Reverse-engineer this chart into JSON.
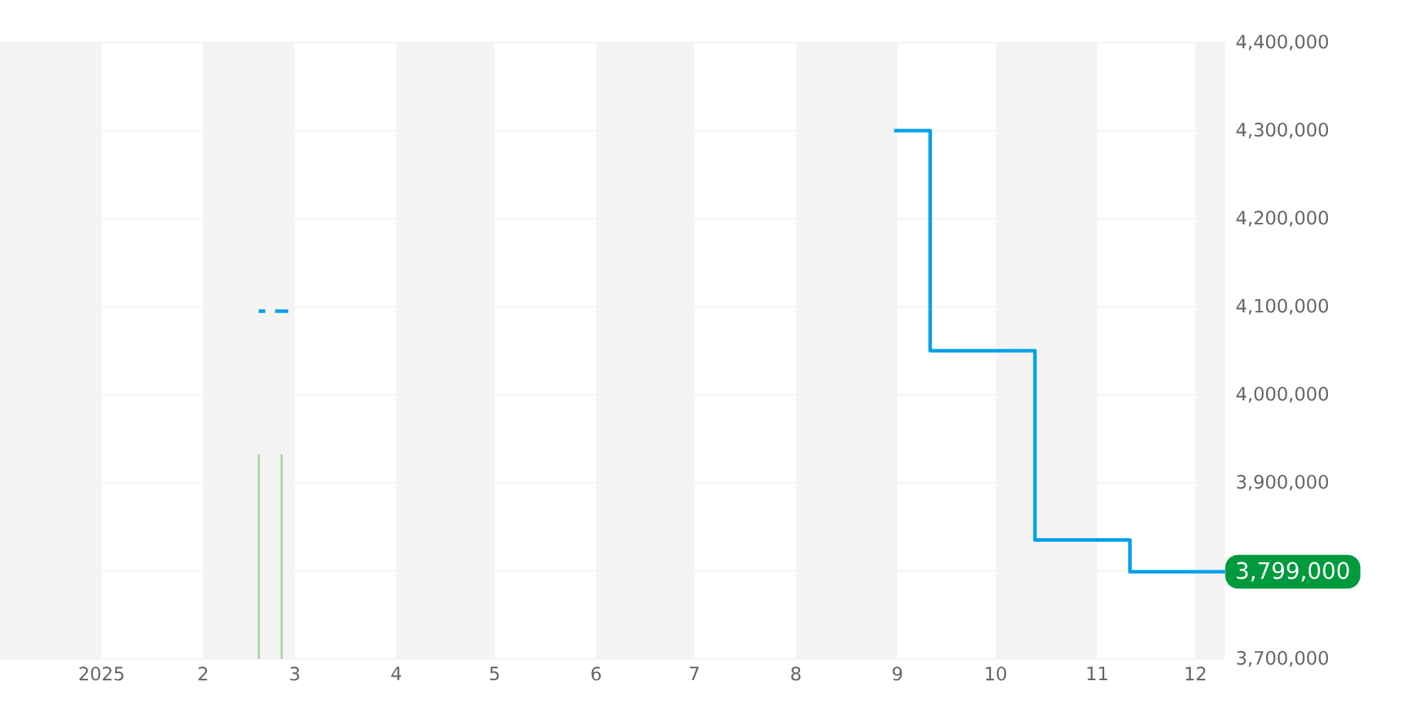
{
  "chart_data": {
    "type": "step",
    "x": [
      "2025-02-18",
      "2025-02-20",
      "2025-02-21",
      "2025-02-23",
      "2025-02-27",
      "2025-03-01",
      "2025-08-31",
      "2025-09-11",
      "2025-10-13",
      "2025-11-11",
      "2025-12-10"
    ],
    "series": [
      {
        "color": "#00a0e9",
        "values": [
          4095000,
          4095000,
          null,
          4095000,
          4095000,
          null,
          4300000,
          4050000,
          3835000,
          3799000,
          3799000
        ]
      },
      {
        "type": "bar",
        "color": "#a5d6a7",
        "x": [
          "2025-02-18",
          "2025-02-25"
        ],
        "values": [
          3932000,
          3932000
        ]
      }
    ],
    "xlim": [
      "2024-12-01",
      "2025-12-10"
    ],
    "xticks": [
      {
        "value": "2025-01-01",
        "label": "2025"
      },
      {
        "value": "2025-02-01",
        "label": "2"
      },
      {
        "value": "2025-03-01",
        "label": "3"
      },
      {
        "value": "2025-04-01",
        "label": "4"
      },
      {
        "value": "2025-05-01",
        "label": "5"
      },
      {
        "value": "2025-06-01",
        "label": "6"
      },
      {
        "value": "2025-07-01",
        "label": "7"
      },
      {
        "value": "2025-08-01",
        "label": "8"
      },
      {
        "value": "2025-09-01",
        "label": "9"
      },
      {
        "value": "2025-10-01",
        "label": "10"
      },
      {
        "value": "2025-11-01",
        "label": "11"
      },
      {
        "value": "2025-12-01",
        "label": "12"
      }
    ],
    "ylim": [
      3700000,
      4400000
    ],
    "yticks": [
      {
        "value": 3700000,
        "label": "3,700,000"
      },
      {
        "value": 3800000,
        "label": null
      },
      {
        "value": 3900000,
        "label": "3,900,000"
      },
      {
        "value": 4000000,
        "label": "4,000,000"
      },
      {
        "value": 4100000,
        "label": "4,100,000"
      },
      {
        "value": 4200000,
        "label": "4,200,000"
      },
      {
        "value": 4300000,
        "label": "4,300,000"
      },
      {
        "value": 4400000,
        "label": "4,400,000"
      }
    ],
    "grid": "y",
    "bands": [
      {
        "axis": "x",
        "from": "2024-12-01",
        "to": "2025-01-01",
        "color": "#f4f4f4"
      },
      {
        "axis": "x",
        "from": "2025-02-01",
        "to": "2025-03-01",
        "color": "#f4f4f4"
      },
      {
        "axis": "x",
        "from": "2025-04-01",
        "to": "2025-05-01",
        "color": "#f4f4f4"
      },
      {
        "axis": "x",
        "from": "2025-06-01",
        "to": "2025-07-01",
        "color": "#f4f4f4"
      },
      {
        "axis": "x",
        "from": "2025-08-01",
        "to": "2025-09-01",
        "color": "#f4f4f4"
      },
      {
        "axis": "x",
        "from": "2025-10-01",
        "to": "2025-11-01",
        "color": "#f4f4f4"
      },
      {
        "axis": "x",
        "from": "2025-12-01",
        "to": "2025-12-10",
        "color": "#f4f4f4"
      }
    ],
    "annotations": [
      {
        "text": "3,799,000",
        "x": "2025-12-10",
        "y": 3799000
      }
    ]
  }
}
